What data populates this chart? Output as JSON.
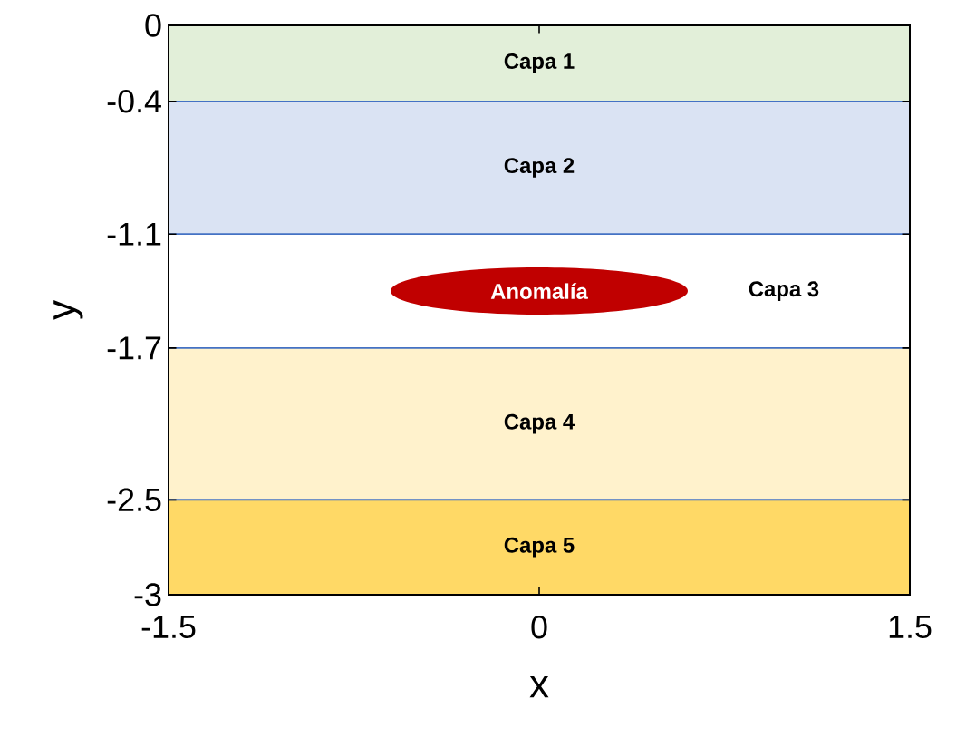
{
  "chart_data": {
    "type": "area",
    "stacked": true,
    "xlabel": "x",
    "ylabel": "y",
    "xlim": [
      -1.5,
      1.5
    ],
    "ylim": [
      -3,
      0
    ],
    "xticks": [
      -1.5,
      0,
      1.5
    ],
    "yticks": [
      0,
      -0.4,
      -1.1,
      -1.7,
      -2.5,
      -3
    ],
    "x": [
      -1.5,
      1.5
    ],
    "series": [
      {
        "name": "Capa 1",
        "color": "#e2efd9",
        "values": [
          -0.4,
          -0.4
        ]
      },
      {
        "name": "Capa 2",
        "color": "#dae3f3",
        "values": [
          -0.7,
          -0.7
        ]
      },
      {
        "name": "Capa 3",
        "color": "#ffffff",
        "values": [
          -0.6,
          -0.6
        ]
      },
      {
        "name": "Capa 4",
        "color": "#fff2cc",
        "values": [
          -0.8,
          -0.8
        ]
      },
      {
        "name": "Capa 5",
        "color": "#ffd966",
        "values": [
          -0.5,
          -0.5
        ]
      }
    ],
    "annotations": [
      "Anomalía"
    ]
  }
}
